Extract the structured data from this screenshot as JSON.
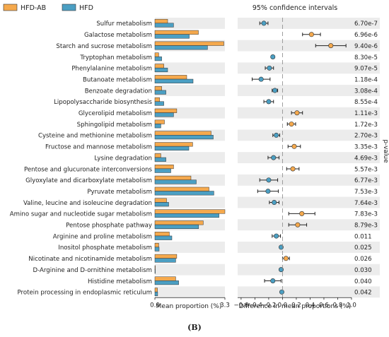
{
  "panel_label": "(B)",
  "chart_data": [
    {
      "type": "bar",
      "orientation": "horizontal",
      "categories": [
        "Sulfur metabolism",
        "Galactose metabolism",
        "Starch and sucrose metabolism",
        "Tryptophan metabolism",
        "Phenylalanine metabolism",
        "Butanoate metabolism",
        "Benzoate degradation",
        "Lipopolysaccharide biosynthesis",
        "Glycerolipid metabolism",
        "Sphingolipid metabolism",
        "Cysteine and methionine metabolism",
        "Fructose and mannose metabolism",
        "Lysine degradation",
        "Pentose and glucuronate interconversions",
        "Glyoxylate and dicarboxylate metabolism",
        "Pyruvate metabolism",
        "Valine, leucine and isoleucine degradation",
        "Amino sugar and nucleotide sugar metabolism",
        "Pentose phosphate pathway",
        "Arginine and proline metabolism",
        "Inositol phosphate metabolism",
        "Nicotinate and nicotinamide metabolism",
        "D-Arginine and D-ornithine metabolism",
        "Histidine metabolism",
        "Protein processing in endoplasmic reticulum"
      ],
      "series": [
        {
          "name": "HFD-AB",
          "color": "#f5a94d",
          "values": [
            0.6,
            2.05,
            3.25,
            0.18,
            0.42,
            1.5,
            0.32,
            0.22,
            1.03,
            0.45,
            2.65,
            1.78,
            0.28,
            0.88,
            1.7,
            2.55,
            0.55,
            3.3,
            2.28,
            0.68,
            0.18,
            1.03,
            0.0,
            0.98,
            0.12
          ]
        },
        {
          "name": "HFD",
          "color": "#4b9fc3",
          "values": [
            0.88,
            1.62,
            2.48,
            0.32,
            0.6,
            1.8,
            0.52,
            0.42,
            0.88,
            0.28,
            2.75,
            1.6,
            0.52,
            0.75,
            1.95,
            2.78,
            0.65,
            3.02,
            2.06,
            0.8,
            0.2,
            0.98,
            0.02,
            1.12,
            0.13
          ]
        }
      ],
      "xlabel": "Mean proportion (%)",
      "xlim": [
        0,
        3.3
      ],
      "xticks": [
        "0.0",
        "3.3"
      ]
    },
    {
      "type": "scatter",
      "title": "95% confidence intervals",
      "xlabel": "Difference in mean proportions (%)",
      "xlim": [
        -0.65,
        1.0
      ],
      "xticks": [
        "−0.6",
        "−0.4",
        "−0.2",
        "0.0",
        "0.2",
        "0.4",
        "0.6",
        "0.8",
        "1.0"
      ],
      "reference_line_x": 0,
      "points": [
        {
          "diff": -0.27,
          "low": -0.33,
          "high": -0.21,
          "color": "#4b9fc3"
        },
        {
          "diff": 0.42,
          "low": 0.29,
          "high": 0.55,
          "color": "#f5a94d"
        },
        {
          "diff": 0.7,
          "low": 0.48,
          "high": 0.92,
          "color": "#f5a94d"
        },
        {
          "diff": -0.14,
          "low": -0.16,
          "high": -0.12,
          "color": "#4b9fc3"
        },
        {
          "diff": -0.19,
          "low": -0.25,
          "high": -0.13,
          "color": "#4b9fc3"
        },
        {
          "diff": -0.31,
          "low": -0.44,
          "high": -0.18,
          "color": "#4b9fc3"
        },
        {
          "diff": -0.11,
          "low": -0.15,
          "high": -0.07,
          "color": "#4b9fc3"
        },
        {
          "diff": -0.2,
          "low": -0.27,
          "high": -0.13,
          "color": "#4b9fc3"
        },
        {
          "diff": 0.21,
          "low": 0.13,
          "high": 0.29,
          "color": "#f5a94d"
        },
        {
          "diff": 0.13,
          "low": 0.07,
          "high": 0.19,
          "color": "#f5a94d"
        },
        {
          "diff": -0.09,
          "low": -0.14,
          "high": -0.04,
          "color": "#4b9fc3"
        },
        {
          "diff": 0.17,
          "low": 0.08,
          "high": 0.26,
          "color": "#f5a94d"
        },
        {
          "diff": -0.13,
          "low": -0.21,
          "high": -0.05,
          "color": "#4b9fc3"
        },
        {
          "diff": 0.15,
          "low": 0.06,
          "high": 0.24,
          "color": "#f5a94d"
        },
        {
          "diff": -0.2,
          "low": -0.33,
          "high": -0.07,
          "color": "#4b9fc3"
        },
        {
          "diff": -0.21,
          "low": -0.36,
          "high": -0.06,
          "color": "#4b9fc3"
        },
        {
          "diff": -0.12,
          "low": -0.19,
          "high": -0.05,
          "color": "#4b9fc3"
        },
        {
          "diff": 0.28,
          "low": 0.09,
          "high": 0.47,
          "color": "#f5a94d"
        },
        {
          "diff": 0.22,
          "low": 0.09,
          "high": 0.35,
          "color": "#f5a94d"
        },
        {
          "diff": -0.09,
          "low": -0.15,
          "high": -0.03,
          "color": "#4b9fc3"
        },
        {
          "diff": -0.02,
          "low": -0.02,
          "high": -0.02,
          "color": "#4b9fc3"
        },
        {
          "diff": 0.05,
          "low": 0.0,
          "high": 0.1,
          "color": "#f5a94d"
        },
        {
          "diff": -0.02,
          "low": -0.02,
          "high": -0.02,
          "color": "#4b9fc3"
        },
        {
          "diff": -0.14,
          "low": -0.26,
          "high": -0.02,
          "color": "#4b9fc3"
        },
        {
          "diff": -0.01,
          "low": -0.01,
          "high": -0.01,
          "color": "#4b9fc3"
        }
      ]
    },
    {
      "type": "table",
      "ylabel": "p-value",
      "values": [
        "6.70e-7",
        "6.96e-6",
        "9.40e-6",
        "8.30e-5",
        "9.07e-5",
        "1.18e-4",
        "3.08e-4",
        "8.55e-4",
        "1.11e-3",
        "1.72e-3",
        "2.70e-3",
        "3.35e-3",
        "4.69e-3",
        "5.57e-3",
        "6.77e-3",
        "7.53e-3",
        "7.64e-3",
        "7.83e-3",
        "8.79e-3",
        "0.011",
        "0.025",
        "0.026",
        "0.030",
        "0.040",
        "0.042"
      ]
    }
  ]
}
